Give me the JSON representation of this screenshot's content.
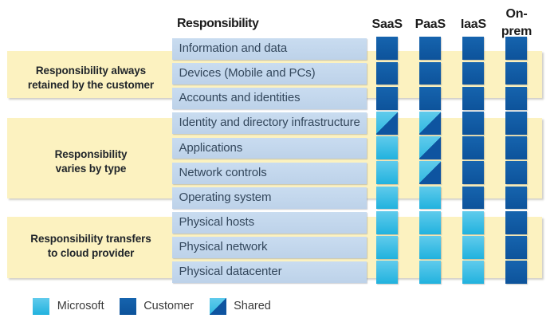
{
  "header": {
    "responsibility_label": "Responsibility",
    "columns": [
      {
        "label": "SaaS"
      },
      {
        "label": "PaaS"
      },
      {
        "label": "IaaS"
      },
      {
        "label": "On-prem",
        "lines": [
          "On-",
          "prem"
        ]
      }
    ]
  },
  "groups": [
    {
      "label": "Responsibility always retained by the customer",
      "lines": [
        "Responsibility always",
        "retained by the customer"
      ]
    },
    {
      "label": "Responsibility varies by type",
      "lines": [
        "Responsibility",
        "varies by type"
      ]
    },
    {
      "label": "Responsibility transfers to cloud provider",
      "lines": [
        "Responsibility transfers",
        "to cloud provider"
      ]
    }
  ],
  "matrix": {
    "rows": [
      {
        "label": "Information and data",
        "cells": [
          "customer",
          "customer",
          "customer",
          "customer"
        ]
      },
      {
        "label": "Devices (Mobile and PCs)",
        "cells": [
          "customer",
          "customer",
          "customer",
          "customer"
        ]
      },
      {
        "label": "Accounts and identities",
        "cells": [
          "customer",
          "customer",
          "customer",
          "customer"
        ]
      },
      {
        "label": "Identity and directory infrastructure",
        "cells": [
          "shared",
          "shared",
          "customer",
          "customer"
        ]
      },
      {
        "label": "Applications",
        "cells": [
          "microsoft",
          "shared",
          "customer",
          "customer"
        ]
      },
      {
        "label": "Network controls",
        "cells": [
          "microsoft",
          "shared",
          "customer",
          "customer"
        ]
      },
      {
        "label": "Operating system",
        "cells": [
          "microsoft",
          "microsoft",
          "customer",
          "customer"
        ]
      },
      {
        "label": "Physical hosts",
        "cells": [
          "microsoft",
          "microsoft",
          "microsoft",
          "customer"
        ]
      },
      {
        "label": "Physical network",
        "cells": [
          "microsoft",
          "microsoft",
          "microsoft",
          "customer"
        ]
      },
      {
        "label": "Physical datacenter",
        "cells": [
          "microsoft",
          "microsoft",
          "microsoft",
          "customer"
        ]
      }
    ]
  },
  "legend": [
    {
      "label": "Microsoft",
      "swatch": "microsoft"
    },
    {
      "label": "Customer",
      "swatch": "customer"
    },
    {
      "label": "Shared",
      "swatch": "shared"
    }
  ],
  "colors": {
    "microsoft_blue_top": "#60CBEC",
    "microsoft_blue_bottom": "#21B2DE",
    "customer_blue_top": "#1664AE",
    "customer_blue_bottom": "#0D539B",
    "band_yellow": "#FCF2C0",
    "row_blue": "#C3D7EC"
  }
}
